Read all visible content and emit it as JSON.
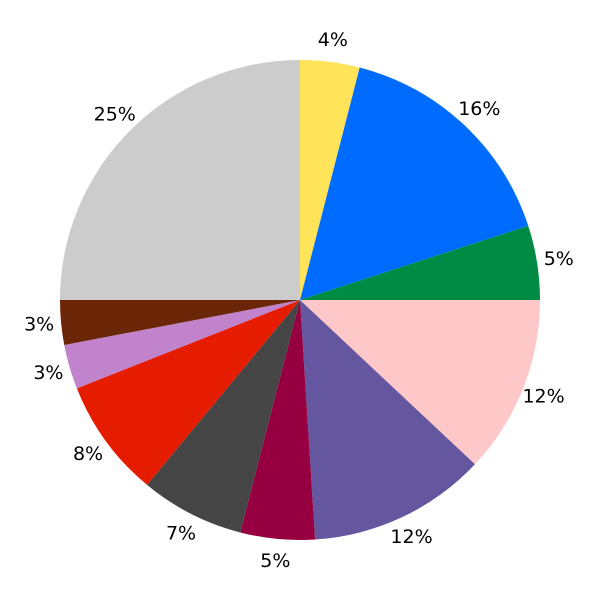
{
  "chart_data": {
    "type": "pie",
    "start": "top",
    "direction": "clockwise",
    "slices": [
      {
        "label": "4%",
        "value": 4,
        "color": "#FFE45A"
      },
      {
        "label": "16%",
        "value": 16,
        "color": "#006CFF"
      },
      {
        "label": "5%",
        "value": 5,
        "color": "#008B45"
      },
      {
        "label": "12%",
        "value": 12,
        "color": "#FFC8C8"
      },
      {
        "label": "12%",
        "value": 12,
        "color": "#6457A0"
      },
      {
        "label": "5%",
        "value": 5,
        "color": "#970040"
      },
      {
        "label": "7%",
        "value": 7,
        "color": "#454545"
      },
      {
        "label": "8%",
        "value": 8,
        "color": "#E61C00"
      },
      {
        "label": "3%",
        "value": 3,
        "color": "#C083CC"
      },
      {
        "label": "3%",
        "value": 3,
        "color": "#6B2608"
      },
      {
        "label": "25%",
        "value": 25,
        "color": "#CCCCCC"
      }
    ]
  }
}
